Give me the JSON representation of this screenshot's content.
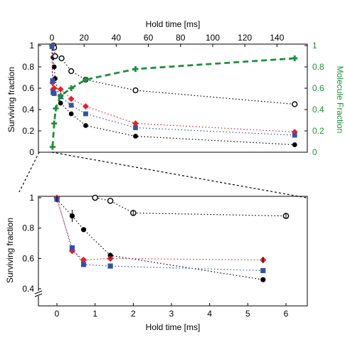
{
  "chart_data": [
    {
      "type": "scatter",
      "xlabel": "Hold time [ms]",
      "ylabel": "Surviving fraction",
      "y2label": "Molecule Fraction",
      "xlim": [
        0,
        160
      ],
      "ylim": [
        0,
        1
      ],
      "y2lim": [
        0,
        1
      ],
      "x_ticks": [
        "0",
        "20",
        "40",
        "60",
        "80",
        "100",
        "120",
        "140"
      ],
      "y_ticks": [
        "0",
        "0.2",
        "0.4",
        "0.6",
        "0.8",
        "1"
      ],
      "y2_ticks": [
        "0",
        "0.2",
        "0.4",
        "0.6",
        "0.8",
        "1"
      ],
      "x_axis_position": "top",
      "grid": false,
      "series": [
        {
          "marker": "filled-circle",
          "color": "#000000",
          "points": [
            [
              0.4,
              0.99
            ],
            [
              0.7,
              0.89
            ],
            [
              1.4,
              0.8
            ],
            [
              2,
              0.69
            ],
            [
              5.4,
              0.46
            ],
            [
              12,
              0.36
            ],
            [
              21,
              0.25
            ],
            [
              52,
              0.15
            ],
            [
              151,
              0.07
            ]
          ]
        },
        {
          "marker": "open-circle",
          "color": "#000000",
          "points": [
            [
              1,
              1.0
            ],
            [
              1.4,
              0.98
            ],
            [
              2,
              0.9
            ],
            [
              6,
              0.88
            ],
            [
              12,
              0.76
            ],
            [
              21,
              0.68
            ],
            [
              52,
              0.58
            ],
            [
              151,
              0.45
            ]
          ]
        },
        {
          "marker": "diamond",
          "color": "#e8202a",
          "points": [
            [
              0,
              1.0
            ],
            [
              0.4,
              0.65
            ],
            [
              0.7,
              0.59
            ],
            [
              1.4,
              0.6
            ],
            [
              5.4,
              0.59
            ],
            [
              12,
              0.5
            ],
            [
              21,
              0.43
            ],
            [
              52,
              0.27
            ],
            [
              151,
              0.19
            ]
          ]
        },
        {
          "marker": "square",
          "color": "#3553a4",
          "points": [
            [
              0,
              0.99
            ],
            [
              0.4,
              0.67
            ],
            [
              0.7,
              0.56
            ],
            [
              1.4,
              0.55
            ],
            [
              5.4,
              0.52
            ],
            [
              12,
              0.44
            ],
            [
              21,
              0.36
            ],
            [
              52,
              0.23
            ],
            [
              151,
              0.16
            ]
          ]
        },
        {
          "marker": "plus",
          "color": "#1f8f3a",
          "axis": "right",
          "points": [
            [
              0.4,
              0.05
            ],
            [
              1.4,
              0.27
            ],
            [
              2.4,
              0.41
            ],
            [
              5.4,
              0.53
            ],
            [
              12,
              0.6
            ],
            [
              21,
              0.68
            ],
            [
              52,
              0.78
            ],
            [
              151,
              0.88
            ]
          ]
        }
      ]
    },
    {
      "type": "scatter",
      "xlabel": "Hold time [ms]",
      "ylabel": "Surviving fraction",
      "xlim": [
        -0.5,
        6.5
      ],
      "ylim": [
        0.35,
        1.02
      ],
      "x_ticks": [
        "0",
        "1",
        "2",
        "3",
        "4",
        "5",
        "6"
      ],
      "y_ticks": [
        "0.4",
        "0.6",
        "0.8",
        "1"
      ],
      "grid": false,
      "series": [
        {
          "marker": "filled-circle",
          "color": "#000000",
          "points": [
            [
              0,
              0.99
            ],
            [
              0.4,
              0.88
            ],
            [
              0.7,
              0.79
            ],
            [
              1.4,
              0.62
            ],
            [
              5.4,
              0.46
            ]
          ]
        },
        {
          "marker": "open-circle",
          "color": "#000000",
          "points": [
            [
              1.0,
              1.0
            ],
            [
              1.4,
              0.98
            ],
            [
              2.0,
              0.9
            ],
            [
              6.0,
              0.88
            ]
          ]
        },
        {
          "marker": "diamond",
          "color": "#e8202a",
          "points": [
            [
              0,
              1.0
            ],
            [
              0.4,
              0.65
            ],
            [
              0.7,
              0.59
            ],
            [
              1.4,
              0.6
            ],
            [
              5.4,
              0.59
            ]
          ]
        },
        {
          "marker": "square",
          "color": "#3553a4",
          "points": [
            [
              0,
              0.99
            ],
            [
              0.4,
              0.67
            ],
            [
              0.7,
              0.56
            ],
            [
              1.4,
              0.55
            ],
            [
              5.4,
              0.52
            ]
          ]
        }
      ]
    }
  ]
}
